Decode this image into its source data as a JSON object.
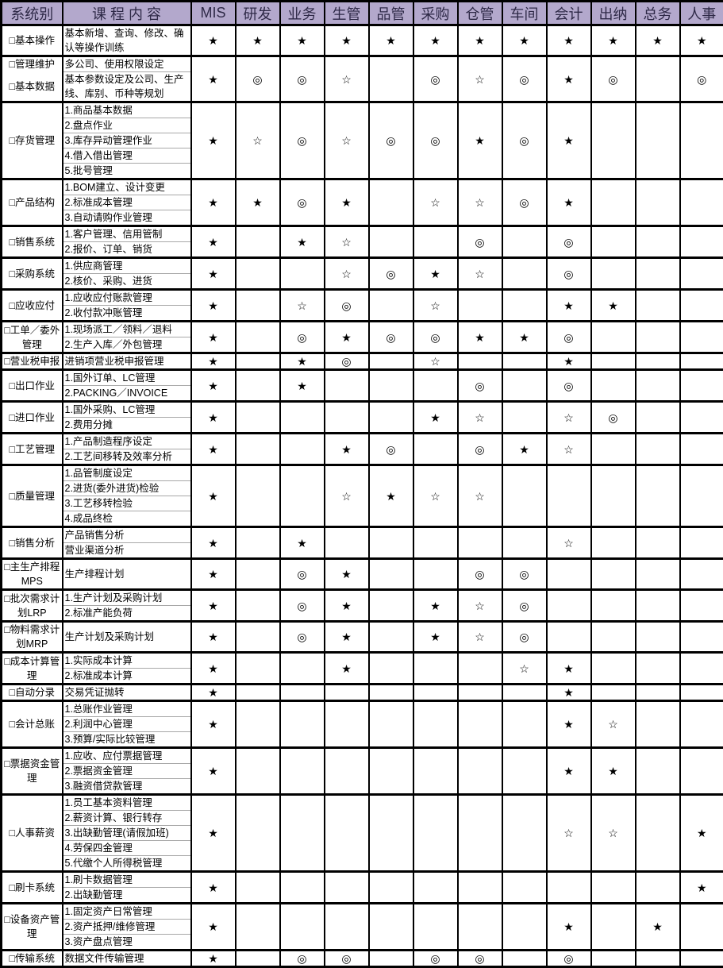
{
  "header": {
    "system_col": "系统别",
    "course_col": "课 程 内 容",
    "departments": [
      "MIS",
      "研发",
      "业务",
      "生管",
      "品管",
      "采购",
      "仓管",
      "车间",
      "会计",
      "出纳",
      "总务",
      "人事"
    ]
  },
  "symbols_used": [
    "★",
    "☆",
    "◎"
  ],
  "colors": {
    "header_bg": "#b3a8cc",
    "header_text": "#2e2947",
    "grid_line": "#000000",
    "sub_divider": "#a8a8a8",
    "body_bg": "#ffffff"
  },
  "groups": [
    {
      "systems": [
        "□基本操作"
      ],
      "courses": [
        "基本新增、查询、修改、确认等操作训练"
      ],
      "marks": [
        "★",
        "★",
        "★",
        "★",
        "★",
        "★",
        "★",
        "★",
        "★",
        "★",
        "★",
        "★"
      ]
    },
    {
      "paired": true,
      "systems": [
        "□管理维护",
        "□基本数据"
      ],
      "courses": [
        "多公司、使用权限设定",
        "基本参数设定及公司、生产线、库别、币种等规划"
      ],
      "marks": [
        "★",
        "◎",
        "◎",
        "☆",
        "",
        "◎",
        "☆",
        "◎",
        "★",
        "◎",
        "",
        "◎"
      ]
    },
    {
      "systems": [
        "□存货管理"
      ],
      "courses": [
        "1.商品基本数据",
        "2.盘点作业",
        "3.库存异动管理作业",
        "4.借入借出管理",
        "5.批号管理"
      ],
      "marks": [
        "★",
        "☆",
        "◎",
        "☆",
        "◎",
        "◎",
        "★",
        "◎",
        "★",
        "",
        "",
        ""
      ]
    },
    {
      "systems": [
        "□产品结构"
      ],
      "courses": [
        "1.BOM建立、设计变更",
        "2.标准成本管理",
        "3.自动请购作业管理"
      ],
      "marks": [
        "★",
        "★",
        "◎",
        "★",
        "",
        "☆",
        "☆",
        "◎",
        "★",
        "",
        "",
        ""
      ]
    },
    {
      "systems": [
        "□销售系统"
      ],
      "courses": [
        "1.客户管理、信用管制",
        "2.报价、订单、销货"
      ],
      "marks": [
        "★",
        "",
        "★",
        "☆",
        "",
        "",
        "◎",
        "",
        "◎",
        "",
        "",
        ""
      ]
    },
    {
      "systems": [
        "□采购系统"
      ],
      "courses": [
        "1.供应商管理",
        "2.核价、采购、进货"
      ],
      "marks": [
        "★",
        "",
        "",
        "☆",
        "◎",
        "★",
        "☆",
        "",
        "◎",
        "",
        "",
        ""
      ]
    },
    {
      "systems": [
        "□应收应付"
      ],
      "courses": [
        "1.应收应付账款管理",
        "2.收付款冲账管理"
      ],
      "marks": [
        "★",
        "",
        "☆",
        "◎",
        "",
        "☆",
        "",
        "",
        "★",
        "★",
        "",
        ""
      ]
    },
    {
      "systems": [
        "□工单／委外管理"
      ],
      "courses": [
        "1.现场派工／领料／退料",
        "2.生产入库／外包管理"
      ],
      "marks": [
        "★",
        "",
        "◎",
        "★",
        "◎",
        "◎",
        "★",
        "★",
        "◎",
        "",
        "",
        ""
      ]
    },
    {
      "systems": [
        "□营业税申报"
      ],
      "courses": [
        "进销项营业税申报管理"
      ],
      "marks": [
        "★",
        "",
        "★",
        "◎",
        "",
        "☆",
        "",
        "",
        "★",
        "",
        "",
        ""
      ]
    },
    {
      "systems": [
        "□出口作业"
      ],
      "courses": [
        "1.国外订单、LC管理",
        "2.PACKING／INVOICE"
      ],
      "marks": [
        "★",
        "",
        "★",
        "",
        "",
        "",
        "◎",
        "",
        "◎",
        "",
        "",
        ""
      ]
    },
    {
      "systems": [
        "□进口作业"
      ],
      "courses": [
        "1.国外采购、LC管理",
        "2.费用分摊"
      ],
      "marks": [
        "★",
        "",
        "",
        "",
        "",
        "★",
        "☆",
        "",
        "☆",
        "◎",
        "",
        ""
      ]
    },
    {
      "systems": [
        "□工艺管理"
      ],
      "courses": [
        "1.产品制造程序设定",
        "2.工艺间移转及效率分析"
      ],
      "marks": [
        "★",
        "",
        "",
        "★",
        "◎",
        "",
        "◎",
        "★",
        "☆",
        "",
        "",
        ""
      ]
    },
    {
      "systems": [
        "□质量管理"
      ],
      "courses": [
        "1.品管制度设定",
        "2.进货(委外进货)检验",
        "3.工艺移转检验",
        "4.成品终检"
      ],
      "marks": [
        "★",
        "",
        "",
        "☆",
        "★",
        "☆",
        "☆",
        "",
        "",
        "",
        "",
        ""
      ]
    },
    {
      "systems": [
        "□销售分析"
      ],
      "courses": [
        "产品销售分析",
        "营业渠道分析"
      ],
      "marks": [
        "★",
        "",
        "★",
        "",
        "",
        "",
        "",
        "",
        "☆",
        "",
        "",
        ""
      ]
    },
    {
      "systems": [
        "□主生产排程MPS"
      ],
      "courses": [
        "生产排程计划"
      ],
      "marks": [
        "★",
        "",
        "◎",
        "★",
        "",
        "",
        "◎",
        "◎",
        "",
        "",
        "",
        ""
      ]
    },
    {
      "systems": [
        "□批次需求计划LRP"
      ],
      "courses": [
        "1.生产计划及采购计划",
        "2.标准产能负荷"
      ],
      "marks": [
        "★",
        "",
        "◎",
        "★",
        "",
        "★",
        "☆",
        "◎",
        "",
        "",
        "",
        ""
      ]
    },
    {
      "systems": [
        "□物料需求计划MRP"
      ],
      "courses": [
        "生产计划及采购计划"
      ],
      "marks": [
        "★",
        "",
        "◎",
        "★",
        "",
        "★",
        "☆",
        "◎",
        "",
        "",
        "",
        ""
      ]
    },
    {
      "systems": [
        "□成本计算管理"
      ],
      "courses": [
        "1.实际成本计算",
        "2.标准成本计算"
      ],
      "marks": [
        "★",
        "",
        "",
        "★",
        "",
        "",
        "",
        "☆",
        "★",
        "",
        "",
        ""
      ]
    },
    {
      "systems": [
        "□自动分录"
      ],
      "courses": [
        "交易凭证抛转"
      ],
      "marks": [
        "★",
        "",
        "",
        "",
        "",
        "",
        "",
        "",
        "★",
        "",
        "",
        ""
      ]
    },
    {
      "systems": [
        "□会计总账"
      ],
      "courses": [
        "1.总账作业管理",
        "2.利润中心管理",
        "3.预算/实际比较管理"
      ],
      "marks": [
        "★",
        "",
        "",
        "",
        "",
        "",
        "",
        "",
        "★",
        "☆",
        "",
        ""
      ]
    },
    {
      "systems": [
        "□票据资金管理"
      ],
      "courses": [
        "1.应收、应付票据管理",
        "2.票据资金管理",
        "3.融资借贷款管理"
      ],
      "marks": [
        "★",
        "",
        "",
        "",
        "",
        "",
        "",
        "",
        "★",
        "★",
        "",
        ""
      ]
    },
    {
      "systems": [
        "□人事薪资"
      ],
      "courses": [
        "1.员工基本资料管理",
        "2.薪资计算、银行转存",
        "3.出缺勤管理(请假加班)",
        "4.劳保四金管理",
        "5.代缴个人所得税管理"
      ],
      "marks": [
        "★",
        "",
        "",
        "",
        "",
        "",
        "",
        "",
        "☆",
        "☆",
        "",
        "★"
      ]
    },
    {
      "systems": [
        "□刷卡系统"
      ],
      "courses": [
        "1.刷卡数据管理",
        "2.出缺勤管理"
      ],
      "marks": [
        "★",
        "",
        "",
        "",
        "",
        "",
        "",
        "",
        "",
        "",
        "",
        "★"
      ]
    },
    {
      "systems": [
        "□设备资产管理"
      ],
      "courses": [
        "1.固定资产日常管理",
        "2.资产抵押/维修管理",
        "3.资产盘点管理"
      ],
      "marks": [
        "★",
        "",
        "",
        "",
        "",
        "",
        "",
        "",
        "★",
        "",
        "★",
        ""
      ]
    },
    {
      "systems": [
        "□传输系统"
      ],
      "courses": [
        "数据文件传输管理"
      ],
      "marks": [
        "★",
        "",
        "◎",
        "◎",
        "",
        "◎",
        "◎",
        "",
        "◎",
        "",
        "",
        ""
      ]
    }
  ]
}
